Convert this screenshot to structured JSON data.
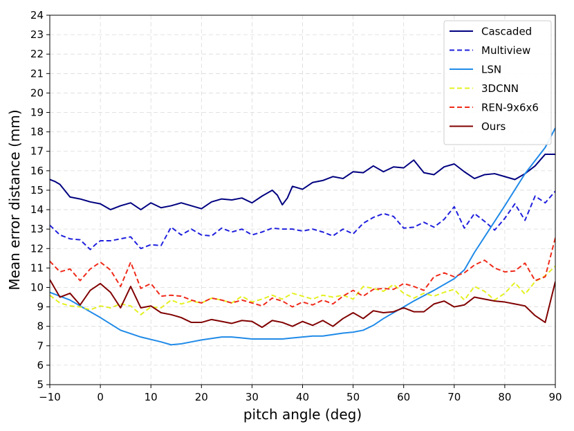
{
  "chart_data": {
    "type": "line",
    "title": "",
    "xlabel": "pitch angle (deg)",
    "ylabel": "Mean error distance (mm)",
    "xlim": [
      -10,
      90
    ],
    "ylim": [
      5,
      24
    ],
    "xticks": [
      -10,
      0,
      10,
      20,
      30,
      40,
      50,
      60,
      70,
      80,
      90
    ],
    "xtick_labels": [
      "−10",
      "0",
      "10",
      "20",
      "30",
      "40",
      "50",
      "60",
      "70",
      "80",
      "90"
    ],
    "yticks": [
      5,
      6,
      7,
      8,
      9,
      10,
      11,
      12,
      13,
      14,
      15,
      16,
      17,
      18,
      19,
      20,
      21,
      22,
      23,
      24
    ],
    "ytick_labels": [
      "5",
      "6",
      "7",
      "8",
      "9",
      "10",
      "11",
      "12",
      "13",
      "14",
      "15",
      "16",
      "17",
      "18",
      "19",
      "20",
      "21",
      "22",
      "23",
      "24"
    ],
    "grid": true,
    "legend_position": "top-right",
    "series": [
      {
        "name": "Cascaded",
        "color": "#000080",
        "dash": "solid",
        "x": [
          -10,
          -9,
          -8,
          -6,
          -4,
          -2,
          0,
          2,
          4,
          6,
          8,
          10,
          12,
          14,
          16,
          18,
          20,
          22,
          24,
          26,
          28,
          30,
          32,
          34,
          35,
          36,
          37,
          38,
          40,
          42,
          44,
          46,
          48,
          50,
          52,
          54,
          56,
          58,
          60,
          62,
          64,
          66,
          68,
          70,
          72,
          74,
          76,
          78,
          80,
          82,
          84,
          86,
          88,
          90
        ],
        "y": [
          15.55,
          15.45,
          15.3,
          14.65,
          14.55,
          14.4,
          14.3,
          14.0,
          14.2,
          14.35,
          14.0,
          14.35,
          14.1,
          14.2,
          14.35,
          14.2,
          14.05,
          14.4,
          14.55,
          14.5,
          14.6,
          14.35,
          14.7,
          15.0,
          14.75,
          14.25,
          14.6,
          15.2,
          15.05,
          15.4,
          15.5,
          15.7,
          15.6,
          15.95,
          15.9,
          16.25,
          15.95,
          16.2,
          16.15,
          16.55,
          15.9,
          15.8,
          16.2,
          16.35,
          15.95,
          15.6,
          15.8,
          15.85,
          15.7,
          15.55,
          15.85,
          16.25,
          16.85,
          16.85
        ]
      },
      {
        "name": "Multiview",
        "color": "#1f1fdd",
        "dash": "dashed",
        "x": [
          -10,
          -8,
          -6,
          -4,
          -2,
          -1,
          0,
          2,
          4,
          6,
          8,
          10,
          12,
          14,
          16,
          18,
          20,
          22,
          24,
          26,
          28,
          30,
          32,
          34,
          36,
          38,
          40,
          42,
          44,
          46,
          48,
          50,
          52,
          54,
          56,
          58,
          60,
          62,
          64,
          66,
          68,
          70,
          72,
          74,
          76,
          78,
          80,
          82,
          84,
          86,
          88,
          90
        ],
        "y": [
          13.2,
          12.7,
          12.5,
          12.45,
          11.95,
          12.2,
          12.4,
          12.4,
          12.5,
          12.6,
          12.0,
          12.2,
          12.15,
          13.1,
          12.7,
          13.0,
          12.7,
          12.65,
          13.05,
          12.85,
          13.0,
          12.7,
          12.85,
          13.05,
          13.0,
          13.0,
          12.9,
          13.0,
          12.85,
          12.65,
          13.0,
          12.75,
          13.3,
          13.6,
          13.8,
          13.65,
          13.05,
          13.1,
          13.35,
          13.1,
          13.5,
          14.15,
          13.05,
          13.8,
          13.4,
          12.95,
          13.55,
          14.3,
          13.45,
          14.7,
          14.35,
          14.95
        ]
      },
      {
        "name": "LSN",
        "color": "#1f8ae8",
        "dash": "solid",
        "x": [
          -10,
          -6,
          -4,
          0,
          4,
          8,
          12,
          14,
          16,
          18,
          20,
          24,
          26,
          28,
          30,
          32,
          34,
          36,
          38,
          40,
          42,
          44,
          48,
          50,
          52,
          54,
          56,
          58,
          60,
          62,
          66,
          70,
          72,
          74,
          76,
          78,
          80,
          84,
          88,
          90
        ],
        "y": [
          9.75,
          9.35,
          9.05,
          8.45,
          7.8,
          7.45,
          7.2,
          7.05,
          7.1,
          7.2,
          7.3,
          7.45,
          7.45,
          7.4,
          7.35,
          7.35,
          7.35,
          7.35,
          7.4,
          7.45,
          7.5,
          7.5,
          7.65,
          7.7,
          7.8,
          8.05,
          8.4,
          8.7,
          9.0,
          9.3,
          9.85,
          10.45,
          10.9,
          11.8,
          12.6,
          13.4,
          14.2,
          15.85,
          17.2,
          18.2
        ]
      },
      {
        "name": "3DCNN",
        "color": "#e4f020",
        "dash": "dashed",
        "x": [
          -10,
          -8,
          -6,
          -4,
          -2,
          0,
          2,
          4,
          6,
          8,
          10,
          12,
          14,
          16,
          18,
          20,
          22,
          24,
          26,
          28,
          30,
          32,
          34,
          36,
          38,
          40,
          42,
          44,
          46,
          48,
          50,
          52,
          54,
          56,
          58,
          60,
          62,
          64,
          66,
          68,
          70,
          72,
          74,
          76,
          78,
          80,
          82,
          84,
          86,
          88,
          90
        ],
        "y": [
          9.6,
          9.2,
          9.05,
          9.0,
          8.85,
          9.05,
          8.95,
          9.15,
          9.05,
          8.6,
          9.0,
          8.95,
          9.35,
          9.15,
          9.3,
          9.2,
          9.45,
          9.35,
          9.2,
          9.55,
          9.25,
          9.4,
          9.6,
          9.4,
          9.7,
          9.55,
          9.4,
          9.6,
          9.5,
          9.6,
          9.4,
          10.05,
          9.95,
          9.8,
          10.15,
          9.7,
          9.45,
          9.7,
          9.55,
          9.75,
          9.9,
          9.35,
          10.05,
          9.8,
          9.35,
          9.7,
          10.25,
          9.65,
          10.3,
          10.6,
          11.1
        ]
      },
      {
        "name": "REN-9x6x6",
        "color": "#ef2a1a",
        "dash": "dashed",
        "x": [
          -10,
          -8,
          -6,
          -4,
          -2,
          0,
          2,
          4,
          6,
          8,
          10,
          12,
          14,
          16,
          18,
          20,
          22,
          24,
          26,
          28,
          30,
          32,
          34,
          36,
          38,
          40,
          42,
          44,
          46,
          48,
          50,
          52,
          54,
          56,
          58,
          60,
          62,
          64,
          66,
          68,
          70,
          72,
          74,
          76,
          78,
          80,
          82,
          84,
          86,
          88,
          90
        ],
        "y": [
          11.35,
          10.8,
          10.95,
          10.35,
          10.95,
          11.3,
          10.9,
          10.05,
          11.3,
          9.95,
          10.2,
          9.55,
          9.6,
          9.55,
          9.35,
          9.2,
          9.45,
          9.35,
          9.2,
          9.35,
          9.2,
          9.05,
          9.45,
          9.3,
          9.0,
          9.25,
          9.1,
          9.35,
          9.15,
          9.55,
          9.85,
          9.55,
          9.9,
          9.95,
          9.9,
          10.2,
          10.05,
          9.85,
          10.55,
          10.75,
          10.55,
          10.75,
          11.15,
          11.4,
          11.0,
          10.8,
          10.85,
          11.25,
          10.35,
          10.55,
          12.55
        ]
      },
      {
        "name": "Ours",
        "color": "#800000",
        "dash": "solid",
        "x": [
          -10,
          -8,
          -6,
          -4,
          -2,
          0,
          2,
          4,
          6,
          8,
          10,
          12,
          14,
          16,
          18,
          20,
          22,
          24,
          26,
          28,
          30,
          32,
          34,
          36,
          38,
          40,
          42,
          44,
          46,
          48,
          50,
          52,
          54,
          56,
          58,
          60,
          62,
          64,
          66,
          68,
          70,
          72,
          74,
          76,
          78,
          80,
          82,
          84,
          86,
          88,
          90
        ],
        "y": [
          10.4,
          9.5,
          9.7,
          9.1,
          9.85,
          10.2,
          9.75,
          8.95,
          10.05,
          8.95,
          9.05,
          8.7,
          8.6,
          8.45,
          8.2,
          8.2,
          8.35,
          8.25,
          8.15,
          8.3,
          8.25,
          7.95,
          8.3,
          8.2,
          8.0,
          8.25,
          8.05,
          8.3,
          8.0,
          8.4,
          8.7,
          8.4,
          8.8,
          8.7,
          8.75,
          8.95,
          8.75,
          8.75,
          9.15,
          9.3,
          9.0,
          9.1,
          9.5,
          9.4,
          9.3,
          9.25,
          9.15,
          9.05,
          8.55,
          8.2,
          10.3
        ]
      }
    ]
  }
}
